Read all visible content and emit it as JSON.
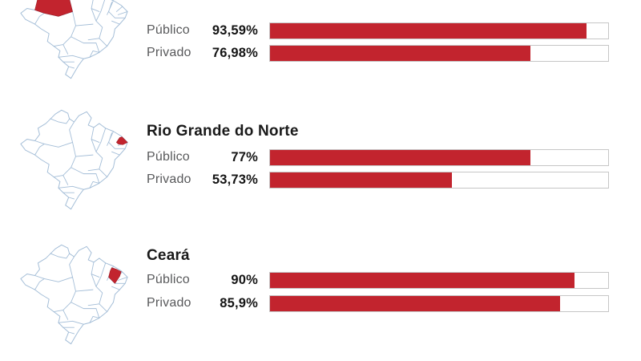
{
  "colors": {
    "bar_fill": "#c2242e",
    "bar_track_border": "#c6c6c6",
    "bar_track_bg": "#ffffff",
    "map_line": "#a3bdd7",
    "map_fill": "#ffffff",
    "label_text": "#58595b",
    "value_text": "#141414",
    "title_text": "#1a1a1a"
  },
  "sections": [
    {
      "title": "",
      "map_highlight": "amazonas-region",
      "rows": [
        {
          "label": "Público",
          "value_text": "93,59%",
          "value": 93.59
        },
        {
          "label": "Privado",
          "value_text": "76,98%",
          "value": 76.98
        }
      ]
    },
    {
      "title": "Rio Grande do Norte",
      "map_highlight": "rio-grande-do-norte-region",
      "rows": [
        {
          "label": "Público",
          "value_text": "77%",
          "value": 77
        },
        {
          "label": "Privado",
          "value_text": "53,73%",
          "value": 53.73
        }
      ]
    },
    {
      "title": "Ceará",
      "map_highlight": "ceara-region",
      "rows": [
        {
          "label": "Público",
          "value_text": "90%",
          "value": 90
        },
        {
          "label": "Privado",
          "value_text": "85,9%",
          "value": 85.9
        }
      ]
    }
  ],
  "chart_data": {
    "type": "bar",
    "orientation": "horizontal",
    "unit": "percent",
    "value_range": [
      0,
      100
    ],
    "series": [
      "Público",
      "Privado"
    ],
    "groups": [
      {
        "title": "",
        "values": [
          93.59,
          76.98
        ],
        "value_labels": [
          "93,59%",
          "76,98%"
        ]
      },
      {
        "title": "Rio Grande do Norte",
        "values": [
          77,
          53.73
        ],
        "value_labels": [
          "77%",
          "53,73%"
        ]
      },
      {
        "title": "Ceará",
        "values": [
          90,
          85.9
        ],
        "value_labels": [
          "90%",
          "85,9%"
        ]
      }
    ],
    "notes": "Top group's title is cropped above the visible area; each group shows a Brazil map with the corresponding state highlighted in red."
  }
}
